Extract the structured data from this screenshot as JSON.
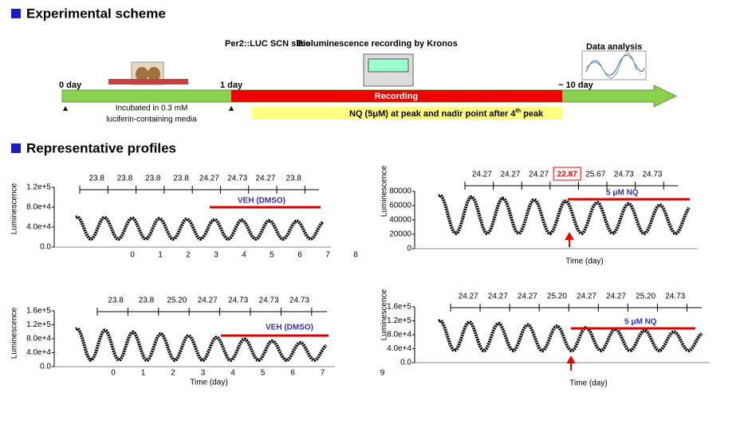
{
  "scheme": {
    "title": "Experimental scheme",
    "slice_label": "Per2::LUC  SCN slice",
    "recording_label": "Bioluminescence recording by  Kronos",
    "analysis_label": "Data analysis",
    "day0": "0 day",
    "day1": "1 day",
    "day10": "~ 10 day",
    "bar_label": "Recording",
    "incubation_line1": "Incubated in 0.3 mM",
    "incubation_line2": "luciferin-containing media",
    "treatment": "NQ (5μM) at peak and nadir point after 4",
    "treatment_sup": "th",
    "treatment_end": " peak"
  },
  "profiles": {
    "title": "Representative profiles",
    "panels": [
      {
        "y_label": "Luminescence",
        "yticks": [
          "1.2e+5",
          "8.0e+4",
          "4.0e+4",
          "0.0"
        ],
        "xticks": [
          "0",
          "1",
          "2",
          "3",
          "4",
          "5",
          "6",
          "7",
          "8"
        ],
        "periods": [
          "23.8",
          "23.8",
          "23.8",
          "23.8",
          "24.27",
          "24.73",
          "24.27",
          "23.8"
        ],
        "bar_label": "VEH (DMSO)"
      },
      {
        "y_label": "Luminescence",
        "yticks": [
          "80000",
          "60000",
          "40000",
          "20000",
          "0"
        ],
        "periods": [
          "24.27",
          "24.27",
          "24.27",
          "22.87",
          "25.67",
          "24.73",
          "24.73"
        ],
        "bar_label": "5 μM NQ",
        "x_label": "Time (day)"
      },
      {
        "y_label": "Luminescence",
        "yticks": [
          "1.6e+5",
          "1.2e+5",
          "8.0e+4",
          "4.0e+4",
          "0.0"
        ],
        "xticks": [
          "0",
          "1",
          "2",
          "3",
          "4",
          "5",
          "6",
          "7",
          "9"
        ],
        "periods": [
          "23.8",
          "23.8",
          "25.20",
          "24.27",
          "24.73",
          "24.73",
          "24.73"
        ],
        "bar_label": "VEH (DMSO)",
        "x_label": "Time (day)"
      },
      {
        "y_label": "Luminescence",
        "yticks": [
          "1.6e+5",
          "1.2e+5",
          "8.0e+4",
          "4.0e+4",
          "0.0"
        ],
        "periods": [
          "24.27",
          "24.27",
          "24.27",
          "25.20",
          "24.27",
          "24.27",
          "25.20",
          "24.73"
        ],
        "bar_label": "5 μM NQ",
        "x_label": "Time (day)"
      }
    ]
  }
}
